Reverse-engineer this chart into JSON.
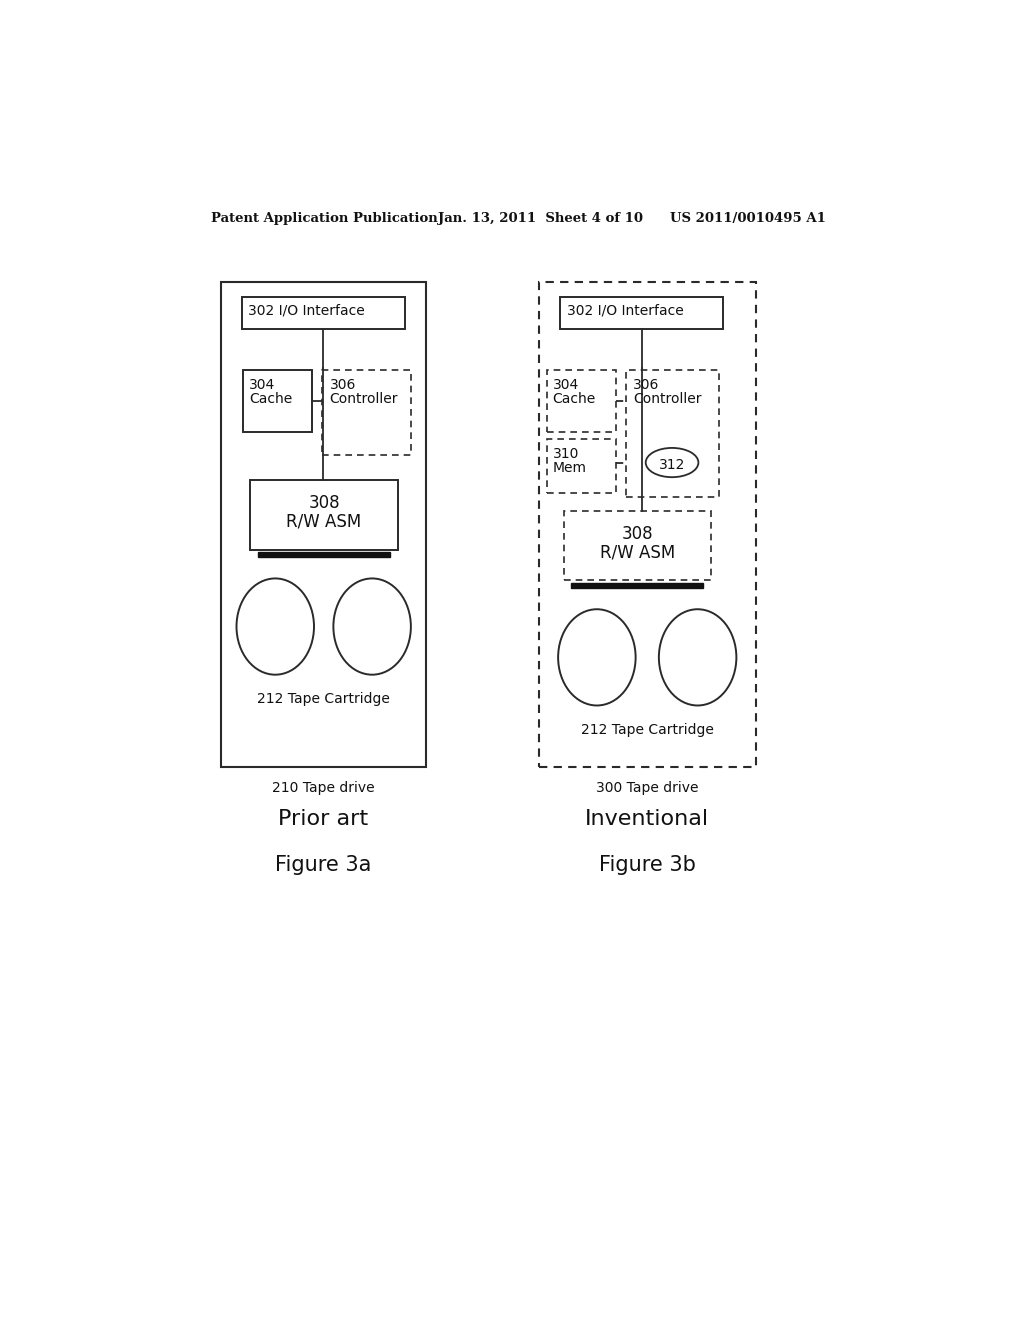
{
  "header_left": "Patent Application Publication",
  "header_center": "Jan. 13, 2011  Sheet 4 of 10",
  "header_right": "US 2011/0010495 A1",
  "fig_left_label": "Prior art",
  "fig_right_label": "Inventional",
  "fig_left_num": "Figure 3a",
  "fig_right_num": "Figure 3b",
  "tape_drive_left": "210 Tape drive",
  "tape_drive_right": "300 Tape drive",
  "bg_color": "#ffffff"
}
